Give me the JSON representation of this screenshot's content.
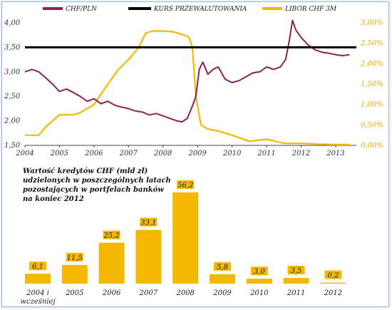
{
  "chart_data": [
    {
      "type": "line",
      "legend": [
        "CHF/PLN",
        "KURS PRZEWALUTOWANIA",
        "LIBOR CHF 3M"
      ],
      "legend_position": "top",
      "x_ticks": [
        "2004",
        "2005",
        "2006",
        "2007",
        "2008",
        "2009",
        "2010",
        "2011",
        "2012",
        "2013"
      ],
      "y_left_ticks": [
        "1,50",
        "2,00",
        "2,50",
        "3,00",
        "3,50",
        "4,00"
      ],
      "y_left_range": [
        1.5,
        4.0
      ],
      "y_right_ticks": [
        "0,00%",
        "0,50%",
        "1,00%",
        "1,50%",
        "2,00%",
        "2,50%",
        "3,00%"
      ],
      "y_right_range": [
        0,
        3.0
      ],
      "colors": {
        "chf_pln": "#8b2252",
        "kurs": "#000000",
        "libor": "#f5b800"
      },
      "series": [
        {
          "name": "CHF/PLN",
          "axis": "left",
          "x": [
            2004.0,
            2004.2,
            2004.4,
            2004.6,
            2004.8,
            2005.0,
            2005.2,
            2005.4,
            2005.6,
            2005.8,
            2006.0,
            2006.2,
            2006.4,
            2006.6,
            2006.8,
            2007.0,
            2007.2,
            2007.4,
            2007.6,
            2007.8,
            2008.0,
            2008.2,
            2008.4,
            2008.55,
            2008.7,
            2008.85,
            2008.95,
            2009.05,
            2009.15,
            2009.3,
            2009.45,
            2009.6,
            2009.8,
            2010.0,
            2010.2,
            2010.4,
            2010.6,
            2010.8,
            2011.0,
            2011.2,
            2011.4,
            2011.55,
            2011.65,
            2011.75,
            2011.85,
            2012.0,
            2012.2,
            2012.4,
            2012.6,
            2012.8,
            2013.0,
            2013.2,
            2013.4
          ],
          "values": [
            3.0,
            3.05,
            3.0,
            2.88,
            2.75,
            2.6,
            2.65,
            2.58,
            2.5,
            2.4,
            2.45,
            2.35,
            2.4,
            2.32,
            2.28,
            2.25,
            2.2,
            2.18,
            2.12,
            2.15,
            2.1,
            2.05,
            2.0,
            1.98,
            2.05,
            2.3,
            2.5,
            3.05,
            3.2,
            2.95,
            3.05,
            3.1,
            2.85,
            2.78,
            2.82,
            2.9,
            2.98,
            3.0,
            3.1,
            3.05,
            3.1,
            3.25,
            3.6,
            4.05,
            3.85,
            3.7,
            3.55,
            3.45,
            3.4,
            3.38,
            3.35,
            3.33,
            3.35
          ]
        },
        {
          "name": "KURS PRZEWALUTOWANIA",
          "axis": "left",
          "x": [
            2004.0,
            2013.6
          ],
          "values": [
            3.5,
            3.5
          ]
        },
        {
          "name": "LIBOR CHF 3M",
          "axis": "right",
          "x": [
            2004.0,
            2004.4,
            2004.6,
            2005.0,
            2005.4,
            2005.6,
            2006.0,
            2006.2,
            2006.4,
            2006.7,
            2007.0,
            2007.3,
            2007.5,
            2007.7,
            2008.0,
            2008.3,
            2008.6,
            2008.75,
            2008.85,
            2008.95,
            2009.1,
            2009.3,
            2009.6,
            2010.0,
            2010.5,
            2011.0,
            2011.5,
            2012.0,
            2012.5,
            2013.0,
            2013.4
          ],
          "values": [
            0.25,
            0.25,
            0.45,
            0.75,
            0.75,
            0.8,
            1.0,
            1.25,
            1.5,
            1.85,
            2.1,
            2.4,
            2.75,
            2.8,
            2.8,
            2.78,
            2.7,
            2.65,
            2.4,
            1.2,
            0.5,
            0.4,
            0.35,
            0.25,
            0.1,
            0.15,
            0.05,
            0.05,
            0.03,
            0.02,
            0.02
          ]
        }
      ]
    },
    {
      "type": "bar",
      "title": "Wartość kredytów CHF (mld zł) udzielonych w poszczególnych latach pozostających w portfelach banków na koniec 2012",
      "title_lines": [
        "Wartość kredytów CHF (mld zł)",
        "udzielonych w poszczególnych latach",
        "pozostających w portfelach banków",
        "na koniec 2012"
      ],
      "categories": [
        "2004 i wcześniej",
        "2005",
        "2006",
        "2007",
        "2008",
        "2009",
        "2010",
        "2011",
        "2012"
      ],
      "category_lines": [
        [
          "2004 i",
          "wcześniej"
        ],
        [
          "2005"
        ],
        [
          "2006"
        ],
        [
          "2007"
        ],
        [
          "2008"
        ],
        [
          "2009"
        ],
        [
          "2010"
        ],
        [
          "2011"
        ],
        [
          "2012"
        ]
      ],
      "values": [
        6.1,
        11.5,
        25.2,
        33.1,
        56.2,
        5.8,
        3.0,
        3.5,
        0.2
      ],
      "labels": [
        "6,1",
        "11,5",
        "25,2",
        "33,1",
        "56,2",
        "5,8",
        "3,0",
        "3,5",
        "0,2"
      ],
      "color": "#f5b800"
    }
  ]
}
